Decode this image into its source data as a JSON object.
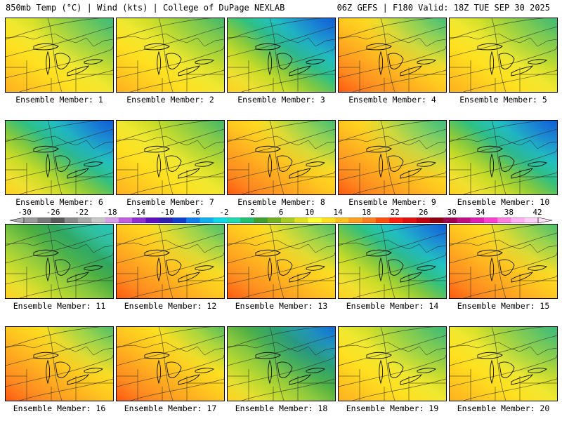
{
  "header": {
    "left_title": "850mb Temp (°C) | Wind (kts) | College of DuPage NEXLAB",
    "right_title": "06Z GEFS | F180 Valid: 18Z TUE SEP 30 2025"
  },
  "panels": [
    {
      "label": "Ensemble Member: 1",
      "style": "warm",
      "cold_ne": 0.55
    },
    {
      "label": "Ensemble Member: 2",
      "style": "warm",
      "cold_ne": 0.4
    },
    {
      "label": "Ensemble Member: 3",
      "style": "cool",
      "cold_ne": 1.0
    },
    {
      "label": "Ensemble Member: 4",
      "style": "hot",
      "cold_ne": 0.6
    },
    {
      "label": "Ensemble Member: 5",
      "style": "warm",
      "cold_ne": 0.5
    },
    {
      "label": "Ensemble Member: 6",
      "style": "cool",
      "cold_ne": 0.95
    },
    {
      "label": "Ensemble Member: 7",
      "style": "warm",
      "cold_ne": 0.35
    },
    {
      "label": "Ensemble Member: 8",
      "style": "hot",
      "cold_ne": 0.55
    },
    {
      "label": "Ensemble Member: 9",
      "style": "hot",
      "cold_ne": 0.7
    },
    {
      "label": "Ensemble Member: 10",
      "style": "cool",
      "cold_ne": 0.9
    },
    {
      "label": "Ensemble Member: 11",
      "style": "green",
      "cold_ne": 0.6
    },
    {
      "label": "Ensemble Member: 12",
      "style": "hot",
      "cold_ne": 0.5
    },
    {
      "label": "Ensemble Member: 13",
      "style": "hot",
      "cold_ne": 0.45
    },
    {
      "label": "Ensemble Member: 14",
      "style": "cool",
      "cold_ne": 0.8
    },
    {
      "label": "Ensemble Member: 15",
      "style": "hot",
      "cold_ne": 0.5
    },
    {
      "label": "Ensemble Member: 16",
      "style": "hot",
      "cold_ne": 0.45
    },
    {
      "label": "Ensemble Member: 17",
      "style": "hot",
      "cold_ne": 0.3
    },
    {
      "label": "Ensemble Member: 18",
      "style": "green",
      "cold_ne": 0.9
    },
    {
      "label": "Ensemble Member: 19",
      "style": "warm",
      "cold_ne": 0.55
    },
    {
      "label": "Ensemble Member: 20",
      "style": "warm",
      "cold_ne": 0.6
    }
  ],
  "colorbar": {
    "labels": [
      "-30",
      "-26",
      "-22",
      "-18",
      "-14",
      "-10",
      "-6",
      "-2",
      "2",
      "6",
      "10",
      "14",
      "18",
      "22",
      "26",
      "30",
      "34",
      "38",
      "42"
    ],
    "colors": [
      "#9a9a9a",
      "#7a7a7a",
      "#5a5a5a",
      "#8a8a8a",
      "#a8a8a8",
      "#c8c8c8",
      "#d8a0e8",
      "#c060e0",
      "#9030d0",
      "#6010c0",
      "#3020b0",
      "#1040d0",
      "#1080f0",
      "#10b0f0",
      "#10d8e8",
      "#20d8b0",
      "#20c070",
      "#40a030",
      "#70b020",
      "#a8cc20",
      "#e0e020",
      "#ffff30",
      "#ffe020",
      "#ffc020",
      "#ffa020",
      "#ff8020",
      "#ff5010",
      "#ff2010",
      "#e01010",
      "#c00010",
      "#900010",
      "#a00050",
      "#c01080",
      "#e020b0",
      "#ff40d0",
      "#ff80e0",
      "#ffb0f0",
      "#ffd0f8"
    ]
  }
}
